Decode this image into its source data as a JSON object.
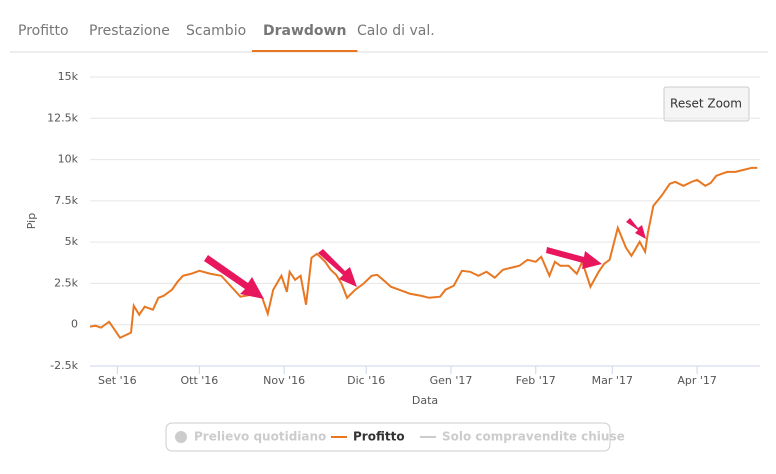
{
  "tabs": [
    "Profitto",
    "Prestazione",
    "Scambio",
    "Drawdown",
    "Calo di val."
  ],
  "active_tab": 3,
  "button": "Reset Zoom",
  "chart_data": {
    "type": "line",
    "x_label": "Data",
    "y_label": "Pip",
    "xlim": [
      0,
      245
    ],
    "xticks": [
      {
        "value": 10,
        "label": "Set '16"
      },
      {
        "value": 40,
        "label": "Ott '16"
      },
      {
        "value": 71,
        "label": "Nov '16"
      },
      {
        "value": 101,
        "label": "Dic '16"
      },
      {
        "value": 132,
        "label": "Gen '17"
      },
      {
        "value": 163,
        "label": "Feb '17"
      },
      {
        "value": 191,
        "label": "Mar '17"
      },
      {
        "value": 222,
        "label": "Apr '17"
      }
    ],
    "ylim": [
      -2500,
      15000
    ],
    "yticks": [
      {
        "value": -2500,
        "label": "-2.5k"
      },
      0,
      {
        "value": 2500,
        "label": "2.5k"
      },
      {
        "value": 5000,
        "label": "5k"
      },
      {
        "value": 7500,
        "label": "7.5k"
      },
      {
        "value": 10000,
        "label": "10k"
      },
      {
        "value": 12500,
        "label": "12.5k"
      },
      {
        "value": 15000,
        "label": "15k"
      }
    ],
    "grid": true,
    "x": [
      0,
      2,
      4,
      7,
      11,
      15,
      16,
      18,
      20,
      23,
      25,
      27,
      30,
      32,
      34,
      37,
      40,
      44,
      48,
      51,
      55,
      59,
      60,
      63,
      65,
      67,
      70,
      72,
      73,
      75,
      77,
      79,
      81,
      83,
      86,
      88,
      90,
      92,
      94,
      97,
      100,
      103,
      105,
      108,
      110,
      113,
      117,
      121,
      124,
      128,
      130,
      133,
      136,
      139,
      142,
      145,
      148,
      151,
      154,
      157,
      160,
      163,
      165,
      168,
      170,
      172,
      175,
      178,
      180,
      183,
      186,
      188,
      190,
      193,
      196,
      198,
      201,
      203,
      204,
      206,
      209,
      212,
      214,
      217,
      220,
      222,
      225,
      227,
      229,
      231,
      233,
      236,
      239,
      242,
      244
    ],
    "series": [
      {
        "name": "Profitto",
        "color": "#e87722",
        "values": [
          -120,
          -60,
          -180,
          180,
          -790,
          -480,
          1150,
          605,
          1090,
          910,
          1630,
          1755,
          2120,
          2600,
          2965,
          3085,
          3265,
          3085,
          2965,
          2420,
          1695,
          1815,
          2120,
          1630,
          665,
          2120,
          2965,
          1995,
          3205,
          2720,
          2965,
          1210,
          4055,
          4295,
          3810,
          3330,
          3025,
          2480,
          1630,
          2120,
          2480,
          2965,
          3025,
          2600,
          2300,
          2120,
          1875,
          1755,
          1630,
          1695,
          2120,
          2360,
          3265,
          3205,
          2965,
          3205,
          2845,
          3330,
          3450,
          3570,
          3930,
          3810,
          4115,
          2965,
          3810,
          3570,
          3570,
          3085,
          3810,
          2300,
          3205,
          3690,
          3930,
          5870,
          4660,
          4175,
          5020,
          4415,
          5565,
          7200,
          7805,
          8530,
          8650,
          8410,
          8650,
          8770,
          8410,
          8590,
          9015,
          9135,
          9255,
          9255,
          9375,
          9500,
          9500
        ]
      }
    ],
    "legend_extra": [
      "Prelievo quotidiano",
      "Solo compravendite chiuse"
    ]
  }
}
